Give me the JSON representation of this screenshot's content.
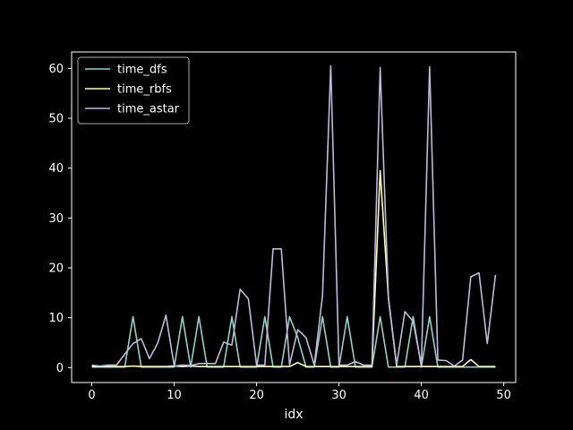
{
  "chart_data": {
    "type": "line",
    "title": "",
    "xlabel": "idx",
    "ylabel": "",
    "xlim": [
      -2.45,
      51.45
    ],
    "ylim": [
      -3.0,
      63.3
    ],
    "xticks": [
      0,
      10,
      20,
      30,
      40,
      50
    ],
    "yticks": [
      0,
      10,
      20,
      30,
      40,
      50,
      60
    ],
    "grid": false,
    "legend_position": "upper-left",
    "background": "#000000",
    "foreground": "#ffffff",
    "x": [
      0,
      1,
      2,
      3,
      4,
      5,
      6,
      7,
      8,
      9,
      10,
      11,
      12,
      13,
      14,
      15,
      16,
      17,
      18,
      19,
      20,
      21,
      22,
      23,
      24,
      25,
      26,
      27,
      28,
      29,
      30,
      31,
      32,
      33,
      34,
      35,
      36,
      37,
      38,
      39,
      40,
      41,
      42,
      43,
      44,
      45,
      46,
      47,
      48,
      49
    ],
    "series": [
      {
        "name": "time_dfs",
        "color": "#8dd3c7",
        "values": [
          0.1,
          0.1,
          0.1,
          0.1,
          0.1,
          10.2,
          0.1,
          0.1,
          0.1,
          0.1,
          0.1,
          10.2,
          0.1,
          10.2,
          0.1,
          0.1,
          0.1,
          10.2,
          0.1,
          0.1,
          0.1,
          10.2,
          0.1,
          0.1,
          10.2,
          6.0,
          0.1,
          0.1,
          10.2,
          0.1,
          0.1,
          10.2,
          0.1,
          0.1,
          0.1,
          10.2,
          0.1,
          0.1,
          0.1,
          10.2,
          0.1,
          10.2,
          0.1,
          0.1,
          0.1,
          0.1,
          0.1,
          0.1,
          0.1,
          0.1
        ]
      },
      {
        "name": "time_rbfs",
        "color": "#ffffb3",
        "values": [
          0.2,
          0.2,
          0.2,
          0.2,
          0.2,
          0.3,
          0.2,
          0.2,
          0.2,
          0.2,
          0.3,
          0.2,
          0.3,
          0.2,
          0.2,
          0.2,
          0.2,
          0.2,
          0.2,
          0.2,
          0.2,
          0.2,
          0.2,
          0.2,
          0.2,
          1.0,
          0.2,
          0.2,
          0.2,
          0.2,
          0.2,
          0.2,
          0.2,
          0.2,
          0.2,
          39.5,
          14.0,
          0.2,
          0.2,
          0.2,
          0.2,
          0.2,
          0.2,
          0.2,
          0.2,
          0.2,
          1.6,
          0.2,
          0.2,
          0.2
        ]
      },
      {
        "name": "time_astar",
        "color": "#bebada",
        "values": [
          0.5,
          0.3,
          0.5,
          0.5,
          2.7,
          4.8,
          5.8,
          1.8,
          4.9,
          10.5,
          0.3,
          0.5,
          0.4,
          0.8,
          0.8,
          0.8,
          5.1,
          4.5,
          15.7,
          13.8,
          0.5,
          0.5,
          23.8,
          23.8,
          0.5,
          7.6,
          6.0,
          0.5,
          14.4,
          60.5,
          0.5,
          0.5,
          1.2,
          0.5,
          0.5,
          60.2,
          14.0,
          0.5,
          11.2,
          9.3,
          0.5,
          60.3,
          1.5,
          1.4,
          0.3,
          1.5,
          18.2,
          19.0,
          4.8,
          18.6
        ]
      }
    ]
  }
}
